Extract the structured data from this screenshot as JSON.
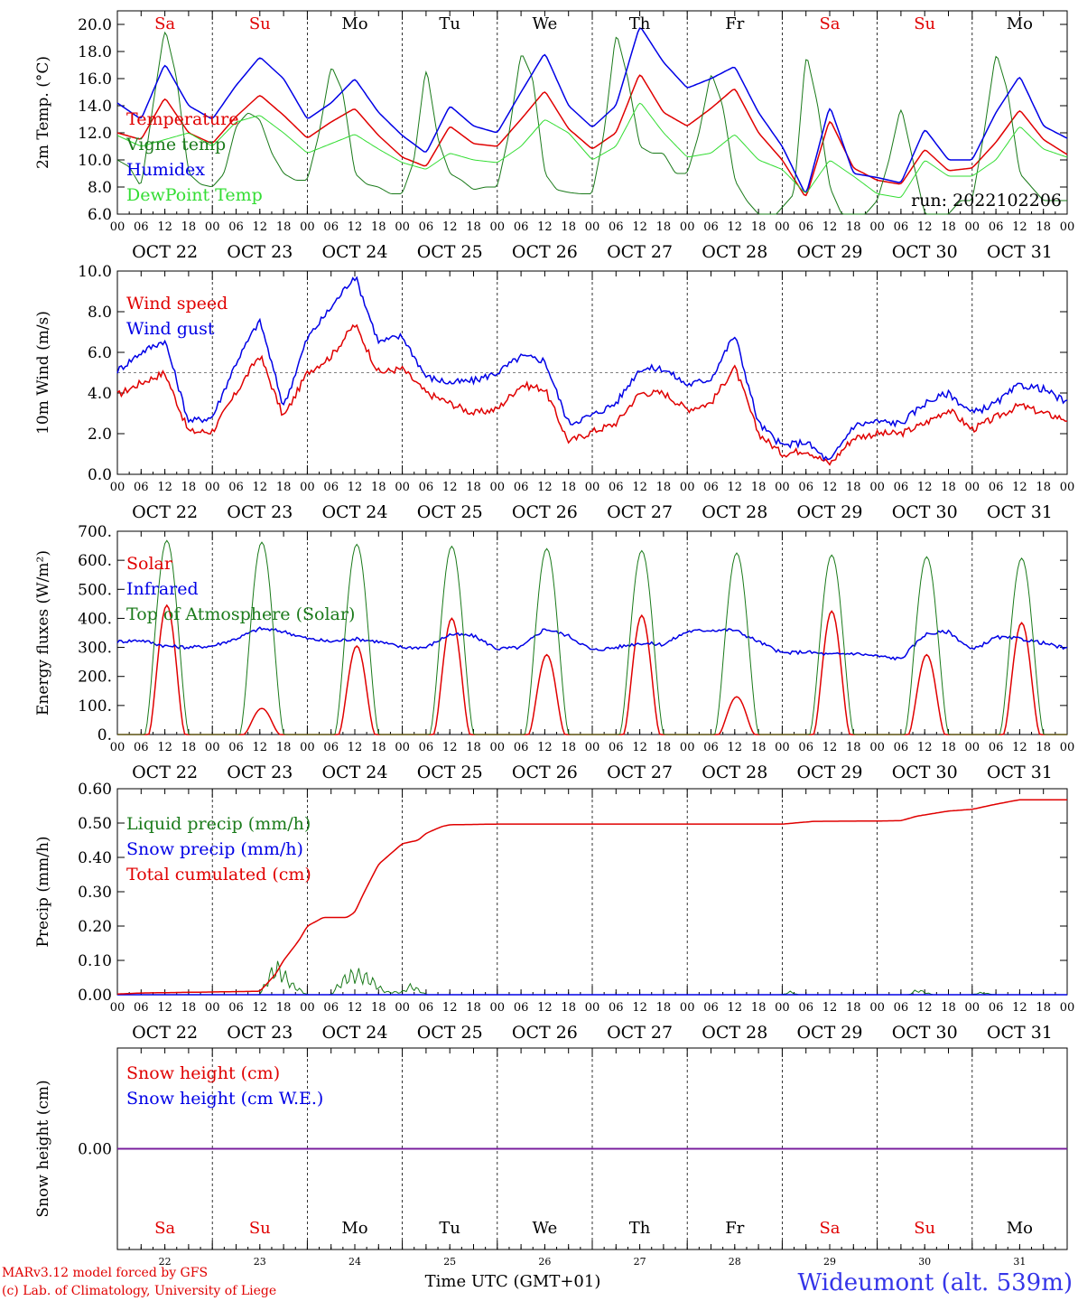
{
  "figure": {
    "station": "Wideumont (alt. 539m)",
    "credit_line1": "MARv3.12 model forced by GFS",
    "credit_line2": "(c) Lab. of Climatology, University of Liege",
    "xlabel": "Time UTC (GMT+01)",
    "run_label": "run: 2022102206",
    "colors": {
      "red": "#e00000",
      "blue": "#0000e6",
      "green": "#1a7a1a",
      "lightgreen": "#33dd33",
      "purple": "#7a1a9a",
      "axis": "#000000"
    },
    "hour_ticks": [
      "00",
      "06",
      "12",
      "18"
    ],
    "last_tick_label": "00",
    "date_labels": [
      "OCT 22",
      "OCT 23",
      "OCT 24",
      "OCT 25",
      "OCT 26",
      "OCT 27",
      "OCT 28",
      "OCT 29",
      "OCT 30",
      "OCT 31"
    ],
    "day_names": [
      "Sa",
      "Su",
      "Mo",
      "Tu",
      "We",
      "Th",
      "Fr",
      "Sa",
      "Su",
      "Mo"
    ],
    "day_numbers": [
      "22",
      "23",
      "24",
      "25",
      "26",
      "27",
      "28",
      "29",
      "30",
      "31"
    ],
    "weekend_days": [
      0,
      1,
      7,
      8
    ]
  },
  "chart_data": [
    {
      "type": "line",
      "name": "temperature",
      "ylabel": "2m Temp. (°C)",
      "ylim": [
        6.0,
        21.0
      ],
      "yticks": [
        6.0,
        8.0,
        10.0,
        12.0,
        14.0,
        16.0,
        18.0,
        20.0
      ],
      "x_unit": "hours since 2022-10-22 00 UTC",
      "xlim": [
        0,
        240
      ],
      "series": [
        {
          "name": "Temperature",
          "color": "#e00000",
          "x": [
            0,
            6,
            12,
            18,
            24,
            30,
            36,
            42,
            48,
            54,
            60,
            66,
            72,
            78,
            84,
            90,
            96,
            102,
            108,
            114,
            120,
            126,
            132,
            138,
            144,
            150,
            156,
            162,
            168,
            174,
            180,
            186,
            192,
            198,
            204,
            210,
            216,
            222,
            228,
            234,
            240
          ],
          "y": [
            12.0,
            11.5,
            14.6,
            12.0,
            11.2,
            13.2,
            14.8,
            13.3,
            11.6,
            12.8,
            13.8,
            11.8,
            10.2,
            9.5,
            12.5,
            11.2,
            11.0,
            13.0,
            15.1,
            12.3,
            10.8,
            12.0,
            16.4,
            13.5,
            12.5,
            13.8,
            15.3,
            12.0,
            10.0,
            7.2,
            13.0,
            9.4,
            8.5,
            8.2,
            10.8,
            9.2,
            9.4,
            11.3,
            13.7,
            11.5,
            10.4
          ]
        },
        {
          "name": "Vigne temp",
          "color": "#1a7a1a",
          "x": [
            0,
            3,
            6,
            9,
            12,
            15,
            18,
            21,
            24,
            27,
            30,
            33,
            36,
            39,
            42,
            45,
            48,
            51,
            54,
            57,
            60,
            63,
            66,
            69,
            72,
            75,
            78,
            81,
            84,
            87,
            90,
            93,
            96,
            99,
            102,
            105,
            108,
            111,
            114,
            117,
            120,
            123,
            126,
            129,
            132,
            135,
            138,
            141,
            144,
            147,
            150,
            153,
            156,
            159,
            162,
            165,
            168,
            171,
            174,
            177,
            180,
            183,
            186,
            189,
            192,
            195,
            198,
            201,
            204,
            207,
            210,
            213,
            216,
            219,
            222,
            225,
            228,
            231,
            234,
            237,
            240
          ],
          "y": [
            10.0,
            9.5,
            8.0,
            14.0,
            19.8,
            16.0,
            9.0,
            8.2,
            8.0,
            9.0,
            12.5,
            13.5,
            13.0,
            10.5,
            9.0,
            8.5,
            8.5,
            12.0,
            17.0,
            15.0,
            9.0,
            8.2,
            8.0,
            7.5,
            7.5,
            10.0,
            17.0,
            11.5,
            9.0,
            8.5,
            7.8,
            8.0,
            8.0,
            12.0,
            18.0,
            16.0,
            9.0,
            7.8,
            7.6,
            7.5,
            7.5,
            12.0,
            19.5,
            16.0,
            11.0,
            10.5,
            10.5,
            9.0,
            9.0,
            12.0,
            16.5,
            14.0,
            8.5,
            7.0,
            6.0,
            5.5,
            6.5,
            7.5,
            18.0,
            14.0,
            8.0,
            6.0,
            5.5,
            6.0,
            7.0,
            10.0,
            14.0,
            10.0,
            6.0,
            5.5,
            6.0,
            7.0,
            7.0,
            12.0,
            18.0,
            15.0,
            9.0,
            8.0,
            7.0,
            7.0,
            7.0
          ]
        },
        {
          "name": "Humidex",
          "color": "#0000e6",
          "x": [
            0,
            6,
            12,
            18,
            24,
            30,
            36,
            42,
            48,
            54,
            60,
            66,
            72,
            78,
            84,
            90,
            96,
            102,
            108,
            114,
            120,
            126,
            132,
            138,
            144,
            150,
            156,
            162,
            168,
            174,
            180,
            186,
            192,
            198,
            204,
            210,
            216,
            222,
            228,
            234,
            240
          ],
          "y": [
            14.2,
            13.0,
            17.1,
            14.0,
            13.0,
            15.5,
            17.6,
            16.0,
            13.0,
            14.2,
            16.0,
            13.5,
            11.8,
            10.5,
            14.0,
            12.5,
            12.0,
            15.0,
            17.9,
            14.0,
            12.4,
            14.0,
            19.9,
            17.2,
            15.3,
            16.0,
            16.9,
            13.5,
            11.0,
            7.4,
            14.0,
            9.0,
            8.7,
            8.3,
            12.3,
            10.0,
            10.0,
            13.5,
            16.2,
            12.5,
            11.6
          ]
        },
        {
          "name": "DewPoint Temp",
          "color": "#33dd33",
          "x": [
            0,
            6,
            12,
            18,
            24,
            30,
            36,
            42,
            48,
            54,
            60,
            66,
            72,
            78,
            84,
            90,
            96,
            102,
            108,
            114,
            120,
            126,
            132,
            138,
            144,
            150,
            156,
            162,
            168,
            174,
            180,
            186,
            192,
            198,
            204,
            210,
            216,
            222,
            228,
            234,
            240
          ],
          "y": [
            11.8,
            11.0,
            11.5,
            12.0,
            11.0,
            12.8,
            13.3,
            12.0,
            10.5,
            11.2,
            11.9,
            10.8,
            9.8,
            9.3,
            10.5,
            10.0,
            9.8,
            11.0,
            13.0,
            12.0,
            10.0,
            11.0,
            14.3,
            12.0,
            10.2,
            10.5,
            11.9,
            10.0,
            9.3,
            7.5,
            10.0,
            8.8,
            7.5,
            7.2,
            10.0,
            8.8,
            8.8,
            10.0,
            12.5,
            10.8,
            10.2
          ]
        }
      ]
    },
    {
      "type": "line",
      "name": "wind",
      "ylabel": "10m Wind (m/s)",
      "ylim": [
        0.0,
        10.0
      ],
      "yticks": [
        0.0,
        2.0,
        4.0,
        6.0,
        8.0,
        10.0
      ],
      "reference_line": 5.0,
      "x_unit": "hours since 2022-10-22 00 UTC",
      "xlim": [
        0,
        240
      ],
      "series": [
        {
          "name": "Wind speed",
          "color": "#e00000",
          "x": [
            0,
            6,
            12,
            18,
            24,
            30,
            36,
            42,
            48,
            54,
            60,
            66,
            72,
            78,
            84,
            90,
            96,
            102,
            108,
            114,
            120,
            126,
            132,
            138,
            144,
            150,
            156,
            162,
            168,
            174,
            180,
            186,
            192,
            198,
            204,
            210,
            216,
            222,
            228,
            234,
            240
          ],
          "y": [
            3.9,
            4.5,
            5.0,
            2.1,
            2.1,
            4.0,
            5.9,
            2.8,
            5.0,
            5.8,
            7.4,
            5.0,
            5.2,
            4.0,
            3.5,
            3.0,
            3.2,
            4.4,
            4.2,
            1.6,
            2.1,
            2.5,
            4.0,
            4.0,
            3.2,
            3.5,
            5.3,
            2.0,
            1.0,
            1.2,
            0.5,
            1.8,
            2.0,
            2.0,
            2.5,
            3.2,
            2.2,
            2.8,
            3.4,
            3.0,
            2.7
          ]
        },
        {
          "name": "Wind gust",
          "color": "#0000e6",
          "x": [
            0,
            6,
            12,
            18,
            24,
            30,
            36,
            42,
            48,
            54,
            60,
            66,
            72,
            78,
            84,
            90,
            96,
            102,
            108,
            114,
            120,
            126,
            132,
            138,
            144,
            150,
            156,
            162,
            168,
            174,
            180,
            186,
            192,
            198,
            204,
            210,
            216,
            222,
            228,
            234,
            240
          ],
          "y": [
            5.1,
            6.0,
            6.6,
            2.6,
            2.8,
            5.5,
            7.6,
            3.3,
            6.7,
            8.2,
            9.8,
            6.5,
            6.8,
            4.8,
            4.5,
            4.6,
            5.0,
            5.8,
            5.6,
            2.5,
            2.9,
            3.5,
            5.2,
            5.2,
            4.4,
            4.7,
            6.9,
            2.5,
            1.4,
            1.6,
            0.6,
            2.4,
            2.6,
            2.5,
            3.5,
            4.0,
            3.0,
            3.5,
            4.4,
            4.2,
            3.5
          ]
        }
      ]
    },
    {
      "type": "line",
      "name": "energy-fluxes",
      "ylabel": "Energy fluxes (W/m²)",
      "ylim": [
        0,
        700
      ],
      "yticks": [
        0,
        100,
        200,
        300,
        400,
        500,
        600,
        700
      ],
      "ytick_labels": [
        "0.",
        "100.",
        "200.",
        "300.",
        "400.",
        "500.",
        "600.",
        "700."
      ],
      "x_unit": "hours since 2022-10-22 00 UTC",
      "xlim": [
        0,
        240
      ],
      "series": [
        {
          "name": "Solar",
          "color": "#e00000",
          "noon_peaks": [
            445,
            90,
            305,
            400,
            275,
            410,
            130,
            425,
            275,
            385
          ]
        },
        {
          "name": "Infrared",
          "color": "#0000e6",
          "x": [
            0,
            6,
            12,
            18,
            24,
            30,
            36,
            42,
            48,
            54,
            60,
            66,
            72,
            78,
            84,
            90,
            96,
            102,
            108,
            114,
            120,
            126,
            132,
            138,
            144,
            150,
            156,
            162,
            168,
            174,
            180,
            186,
            192,
            198,
            204,
            210,
            216,
            222,
            228,
            234,
            240
          ],
          "y": [
            320,
            325,
            305,
            300,
            305,
            330,
            365,
            355,
            330,
            320,
            330,
            320,
            300,
            300,
            345,
            340,
            295,
            300,
            365,
            340,
            290,
            300,
            315,
            310,
            355,
            360,
            360,
            320,
            280,
            285,
            275,
            280,
            270,
            260,
            345,
            355,
            290,
            335,
            330,
            315,
            295
          ]
        },
        {
          "name": "Top of Atmosphere (Solar)",
          "color": "#1a7a1a",
          "noon_peaks": [
            668,
            662,
            655,
            648,
            640,
            633,
            625,
            618,
            612,
            607
          ]
        }
      ]
    },
    {
      "type": "line",
      "name": "precip",
      "ylabel": "Precip (mm/h)",
      "ylim": [
        0.0,
        0.6
      ],
      "yticks": [
        0.0,
        0.1,
        0.2,
        0.3,
        0.4,
        0.5,
        0.6
      ],
      "ytick_labels": [
        "0.00",
        "0.10",
        "0.20",
        "0.30",
        "0.40",
        "0.50",
        "0.60"
      ],
      "x_unit": "hours since 2022-10-22 00 UTC",
      "xlim": [
        0,
        240
      ],
      "series": [
        {
          "name": "Liquid precip (mm/h)",
          "color": "#1a7a1a",
          "x": [
            0,
            36,
            38,
            40,
            42,
            44,
            46,
            48,
            54,
            56,
            58,
            60,
            62,
            64,
            66,
            68,
            72,
            74,
            76,
            78,
            84,
            168,
            170,
            172,
            200,
            202,
            204,
            206,
            216,
            218,
            220,
            222,
            240
          ],
          "y": [
            0,
            0,
            0.06,
            0.11,
            0.08,
            0.04,
            0.02,
            0,
            0,
            0.04,
            0.07,
            0.08,
            0.075,
            0.06,
            0.03,
            0.01,
            0.01,
            0.035,
            0.02,
            0,
            0,
            0,
            0.012,
            0,
            0,
            0.018,
            0.01,
            0,
            0,
            0.008,
            0.004,
            0,
            0
          ]
        },
        {
          "name": "Snow precip (mm/h)",
          "color": "#0000e6",
          "x": [
            0,
            240
          ],
          "y": [
            0,
            0
          ]
        },
        {
          "name": "Total cumulated (cm)",
          "color": "#e00000",
          "x": [
            0,
            6,
            24,
            36,
            40,
            42,
            46,
            48,
            52,
            58,
            60,
            62,
            66,
            70,
            72,
            76,
            78,
            82,
            84,
            96,
            120,
            144,
            168,
            176,
            192,
            198,
            202,
            210,
            216,
            222,
            228,
            240
          ],
          "y": [
            0.002,
            0.005,
            0.008,
            0.01,
            0.06,
            0.1,
            0.16,
            0.2,
            0.225,
            0.225,
            0.24,
            0.29,
            0.38,
            0.42,
            0.44,
            0.45,
            0.47,
            0.49,
            0.495,
            0.497,
            0.497,
            0.497,
            0.497,
            0.505,
            0.506,
            0.507,
            0.52,
            0.535,
            0.54,
            0.555,
            0.568,
            0.568
          ]
        }
      ]
    },
    {
      "type": "line",
      "name": "snow",
      "ylabel": "Snow height (cm)",
      "ylim": [
        -1.0,
        1.0
      ],
      "yticks": [
        0.0
      ],
      "ytick_labels": [
        "0.00"
      ],
      "x_unit": "hours since 2022-10-22 00 UTC",
      "xlim": [
        0,
        240
      ],
      "series": [
        {
          "name": "Snow height (cm)",
          "color": "#e00000",
          "x": [
            0,
            240
          ],
          "y": [
            0,
            0
          ]
        },
        {
          "name": "Snow height (cm W.E.)",
          "color": "#0000e6",
          "x": [
            0,
            240
          ],
          "y": [
            0,
            0
          ]
        }
      ]
    }
  ]
}
